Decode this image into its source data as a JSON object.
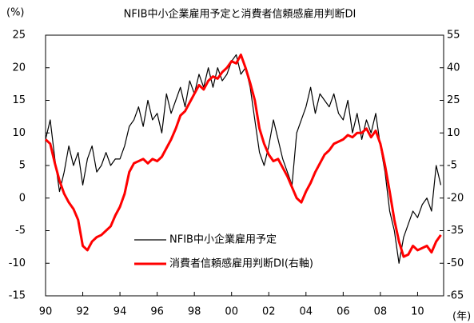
{
  "chart_data": {
    "type": "line",
    "title": "NFIB中小企業雇用予定と消費者信頼感雇用判断DI",
    "y_unit": "(%)",
    "x_unit": "(年)",
    "x": [
      1990,
      1990.25,
      1990.5,
      1990.75,
      1991,
      1991.25,
      1991.5,
      1991.75,
      1992,
      1992.25,
      1992.5,
      1992.75,
      1993,
      1993.25,
      1993.5,
      1993.75,
      1994,
      1994.25,
      1994.5,
      1994.75,
      1995,
      1995.25,
      1995.5,
      1995.75,
      1996,
      1996.25,
      1996.5,
      1996.75,
      1997,
      1997.25,
      1997.5,
      1997.75,
      1998,
      1998.25,
      1998.5,
      1998.75,
      1999,
      1999.25,
      1999.5,
      1999.75,
      2000,
      2000.25,
      2000.5,
      2000.75,
      2001,
      2001.25,
      2001.5,
      2001.75,
      2002,
      2002.25,
      2002.5,
      2002.75,
      2003,
      2003.25,
      2003.5,
      2003.75,
      2004,
      2004.25,
      2004.5,
      2004.75,
      2005,
      2005.25,
      2005.5,
      2005.75,
      2006,
      2006.25,
      2006.5,
      2006.75,
      2007,
      2007.25,
      2007.5,
      2007.75,
      2008,
      2008.25,
      2008.5,
      2008.75,
      2009,
      2009.25,
      2009.5,
      2009.75,
      2010,
      2010.25,
      2010.5,
      2010.75,
      2011,
      2011.25
    ],
    "series": [
      {
        "name": "NFIB中小企業雇用予定",
        "color": "#000000",
        "width": 1.2,
        "values": [
          9,
          12,
          6,
          1,
          4,
          8,
          5,
          7,
          2,
          6,
          8,
          4,
          5,
          7,
          5,
          6,
          6,
          8,
          11,
          12,
          14,
          11,
          15,
          12,
          13,
          10,
          16,
          13,
          15,
          17,
          14,
          18,
          16,
          19,
          17,
          20,
          17,
          20,
          18,
          19,
          21,
          22,
          19,
          20,
          17,
          12,
          7,
          5,
          8,
          12,
          9,
          6,
          4,
          2,
          10,
          12,
          14,
          17,
          13,
          16,
          15,
          14,
          16,
          13,
          12,
          15,
          10,
          13,
          9,
          12,
          10,
          13,
          8,
          4,
          -2,
          -5,
          -10,
          -6,
          -4,
          -2,
          -3,
          -1,
          0,
          -2,
          5,
          2
        ]
      },
      {
        "name": "消費者信頼感雇用判断DI(右軸)",
        "color": "#ff0000",
        "width": 3,
        "axis": "y2",
        "values": [
          7,
          5,
          -4,
          -12,
          -18,
          -22,
          -25,
          -30,
          -42,
          -44,
          -40,
          -38,
          -37,
          -35,
          -33,
          -28,
          -24,
          -18,
          -8,
          -4,
          -3,
          -2,
          -4,
          -2,
          -3,
          -1,
          3,
          7,
          12,
          18,
          20,
          24,
          28,
          32,
          30,
          34,
          36,
          35,
          38,
          40,
          43,
          42,
          46,
          40,
          33,
          25,
          12,
          5,
          0,
          -3,
          -2,
          -6,
          -10,
          -15,
          -20,
          -22,
          -17,
          -13,
          -8,
          -4,
          0,
          2,
          5,
          6,
          7,
          9,
          8,
          10,
          10,
          12,
          8,
          11,
          5,
          -5,
          -17,
          -30,
          -40,
          -47,
          -46,
          -42,
          -44,
          -43,
          -42,
          -45,
          -40,
          -37
        ]
      }
    ],
    "xlim": [
      1990,
      2011.4
    ],
    "xticks": [
      {
        "value": 1990,
        "label": "90"
      },
      {
        "value": 1992,
        "label": "92"
      },
      {
        "value": 1994,
        "label": "94"
      },
      {
        "value": 1996,
        "label": "96"
      },
      {
        "value": 1998,
        "label": "98"
      },
      {
        "value": 2000,
        "label": "00"
      },
      {
        "value": 2002,
        "label": "02"
      },
      {
        "value": 2004,
        "label": "04"
      },
      {
        "value": 2006,
        "label": "06"
      },
      {
        "value": 2008,
        "label": "08"
      },
      {
        "value": 2010,
        "label": "10"
      }
    ],
    "ylim": [
      -15,
      25
    ],
    "yticks": [
      -15,
      -10,
      -5,
      0,
      5,
      10,
      15,
      20,
      25
    ],
    "y2lim": [
      -65,
      55
    ],
    "y2ticks": [
      -65,
      -50,
      -35,
      -20,
      -5,
      10,
      25,
      40,
      55
    ],
    "grid": false
  }
}
